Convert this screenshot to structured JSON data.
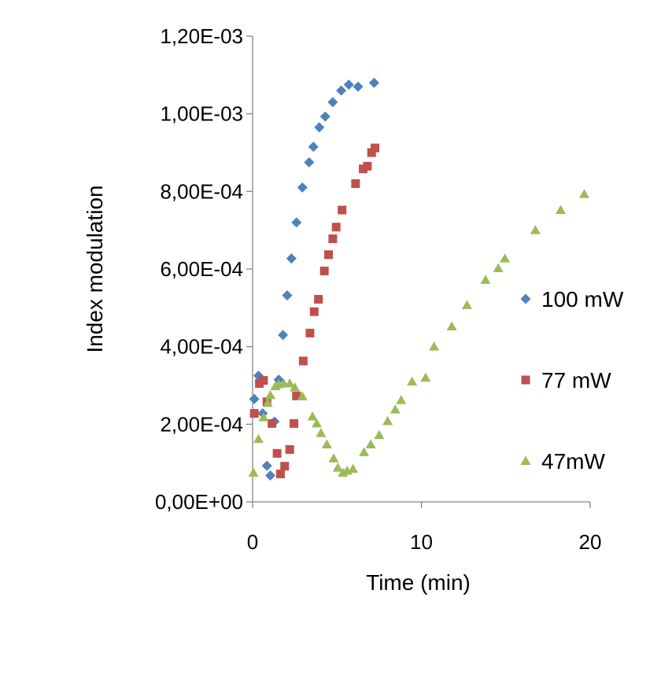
{
  "chart_data": {
    "type": "scatter",
    "title": "",
    "xlabel": "Time (min)",
    "ylabel": "Index modulation",
    "xlim": [
      0,
      20
    ],
    "ylim": [
      0,
      0.0012
    ],
    "x_ticks": [
      {
        "value": 0,
        "label": "0"
      },
      {
        "value": 10,
        "label": "10"
      },
      {
        "value": 20,
        "label": "20"
      }
    ],
    "y_ticks": [
      {
        "value": 0,
        "label": "0,00E+00"
      },
      {
        "value": 0.0002,
        "label": "2,00E-04"
      },
      {
        "value": 0.0004,
        "label": "4,00E-04"
      },
      {
        "value": 0.0006,
        "label": "6,00E-04"
      },
      {
        "value": 0.0008,
        "label": "8,00E-04"
      },
      {
        "value": 0.001,
        "label": "1,00E-03"
      },
      {
        "value": 0.0012,
        "label": "1,20E-03"
      }
    ],
    "grid": false,
    "legend_position": "right",
    "series": [
      {
        "name": "100 mW",
        "color": "#4f81bd",
        "marker": "diamond",
        "points": [
          [
            0.1,
            0.000265
          ],
          [
            0.35,
            0.000325
          ],
          [
            0.6,
            0.000228
          ],
          [
            0.85,
            9.3e-05
          ],
          [
            1.05,
            6.8e-05
          ],
          [
            1.3,
            0.000207
          ],
          [
            1.55,
            0.000315
          ],
          [
            1.8,
            0.00043
          ],
          [
            2.05,
            0.000532
          ],
          [
            2.3,
            0.000627
          ],
          [
            2.6,
            0.00072
          ],
          [
            2.95,
            0.00081
          ],
          [
            3.35,
            0.000875
          ],
          [
            3.6,
            0.000915
          ],
          [
            3.95,
            0.000965
          ],
          [
            4.3,
            0.000993
          ],
          [
            4.75,
            0.00103
          ],
          [
            5.25,
            0.00106
          ],
          [
            5.7,
            0.001075
          ],
          [
            6.25,
            0.00107
          ],
          [
            7.2,
            0.00108
          ]
        ]
      },
      {
        "name": "77 mW",
        "color": "#c0504d",
        "marker": "square",
        "points": [
          [
            0.1,
            0.000228
          ],
          [
            0.4,
            0.000305
          ],
          [
            0.65,
            0.000313
          ],
          [
            0.85,
            0.000258
          ],
          [
            1.15,
            0.000202
          ],
          [
            1.45,
            0.000125
          ],
          [
            1.65,
            7.2e-05
          ],
          [
            1.9,
            9.2e-05
          ],
          [
            2.2,
            0.000135
          ],
          [
            2.45,
            0.000202
          ],
          [
            2.6,
            0.000273
          ],
          [
            3.0,
            0.000363
          ],
          [
            3.4,
            0.000435
          ],
          [
            3.65,
            0.00049
          ],
          [
            3.9,
            0.000522
          ],
          [
            4.25,
            0.000595
          ],
          [
            4.5,
            0.000637
          ],
          [
            4.75,
            0.000678
          ],
          [
            4.95,
            0.000708
          ],
          [
            5.3,
            0.000752
          ],
          [
            6.1,
            0.00082
          ],
          [
            6.55,
            0.000858
          ],
          [
            6.8,
            0.000865
          ],
          [
            7.05,
            0.0009
          ],
          [
            7.25,
            0.000912
          ]
        ]
      },
      {
        "name": "47mW",
        "color": "#9bbb59",
        "marker": "triangle",
        "points": [
          [
            0.05,
            7.5e-05
          ],
          [
            0.35,
            0.000162
          ],
          [
            0.65,
            0.000218
          ],
          [
            0.9,
            0.000255
          ],
          [
            1.05,
            0.000275
          ],
          [
            1.35,
            0.000298
          ],
          [
            1.55,
            0.000303
          ],
          [
            1.85,
            0.000305
          ],
          [
            2.2,
            0.000305
          ],
          [
            2.5,
            0.000295
          ],
          [
            2.95,
            0.000272
          ],
          [
            3.55,
            0.00022
          ],
          [
            3.8,
            0.000202
          ],
          [
            4.05,
            0.000177
          ],
          [
            4.4,
            0.000148
          ],
          [
            4.8,
            0.000112
          ],
          [
            5.05,
            8.8e-05
          ],
          [
            5.35,
            7.5e-05
          ],
          [
            5.6,
            8e-05
          ],
          [
            5.95,
            8.5e-05
          ],
          [
            6.6,
            0.000128
          ],
          [
            7.0,
            0.000148
          ],
          [
            7.5,
            0.000172
          ],
          [
            8.0,
            0.000208
          ],
          [
            8.45,
            0.000238
          ],
          [
            8.8,
            0.000262
          ],
          [
            9.45,
            0.00031
          ],
          [
            10.25,
            0.00032
          ],
          [
            10.75,
            0.0004
          ],
          [
            11.8,
            0.000452
          ],
          [
            12.7,
            0.000507
          ],
          [
            13.8,
            0.000572
          ],
          [
            14.55,
            0.000602
          ],
          [
            14.95,
            0.000627
          ],
          [
            16.75,
            0.0007
          ],
          [
            18.25,
            0.000752
          ],
          [
            19.65,
            0.000793
          ]
        ]
      }
    ]
  }
}
